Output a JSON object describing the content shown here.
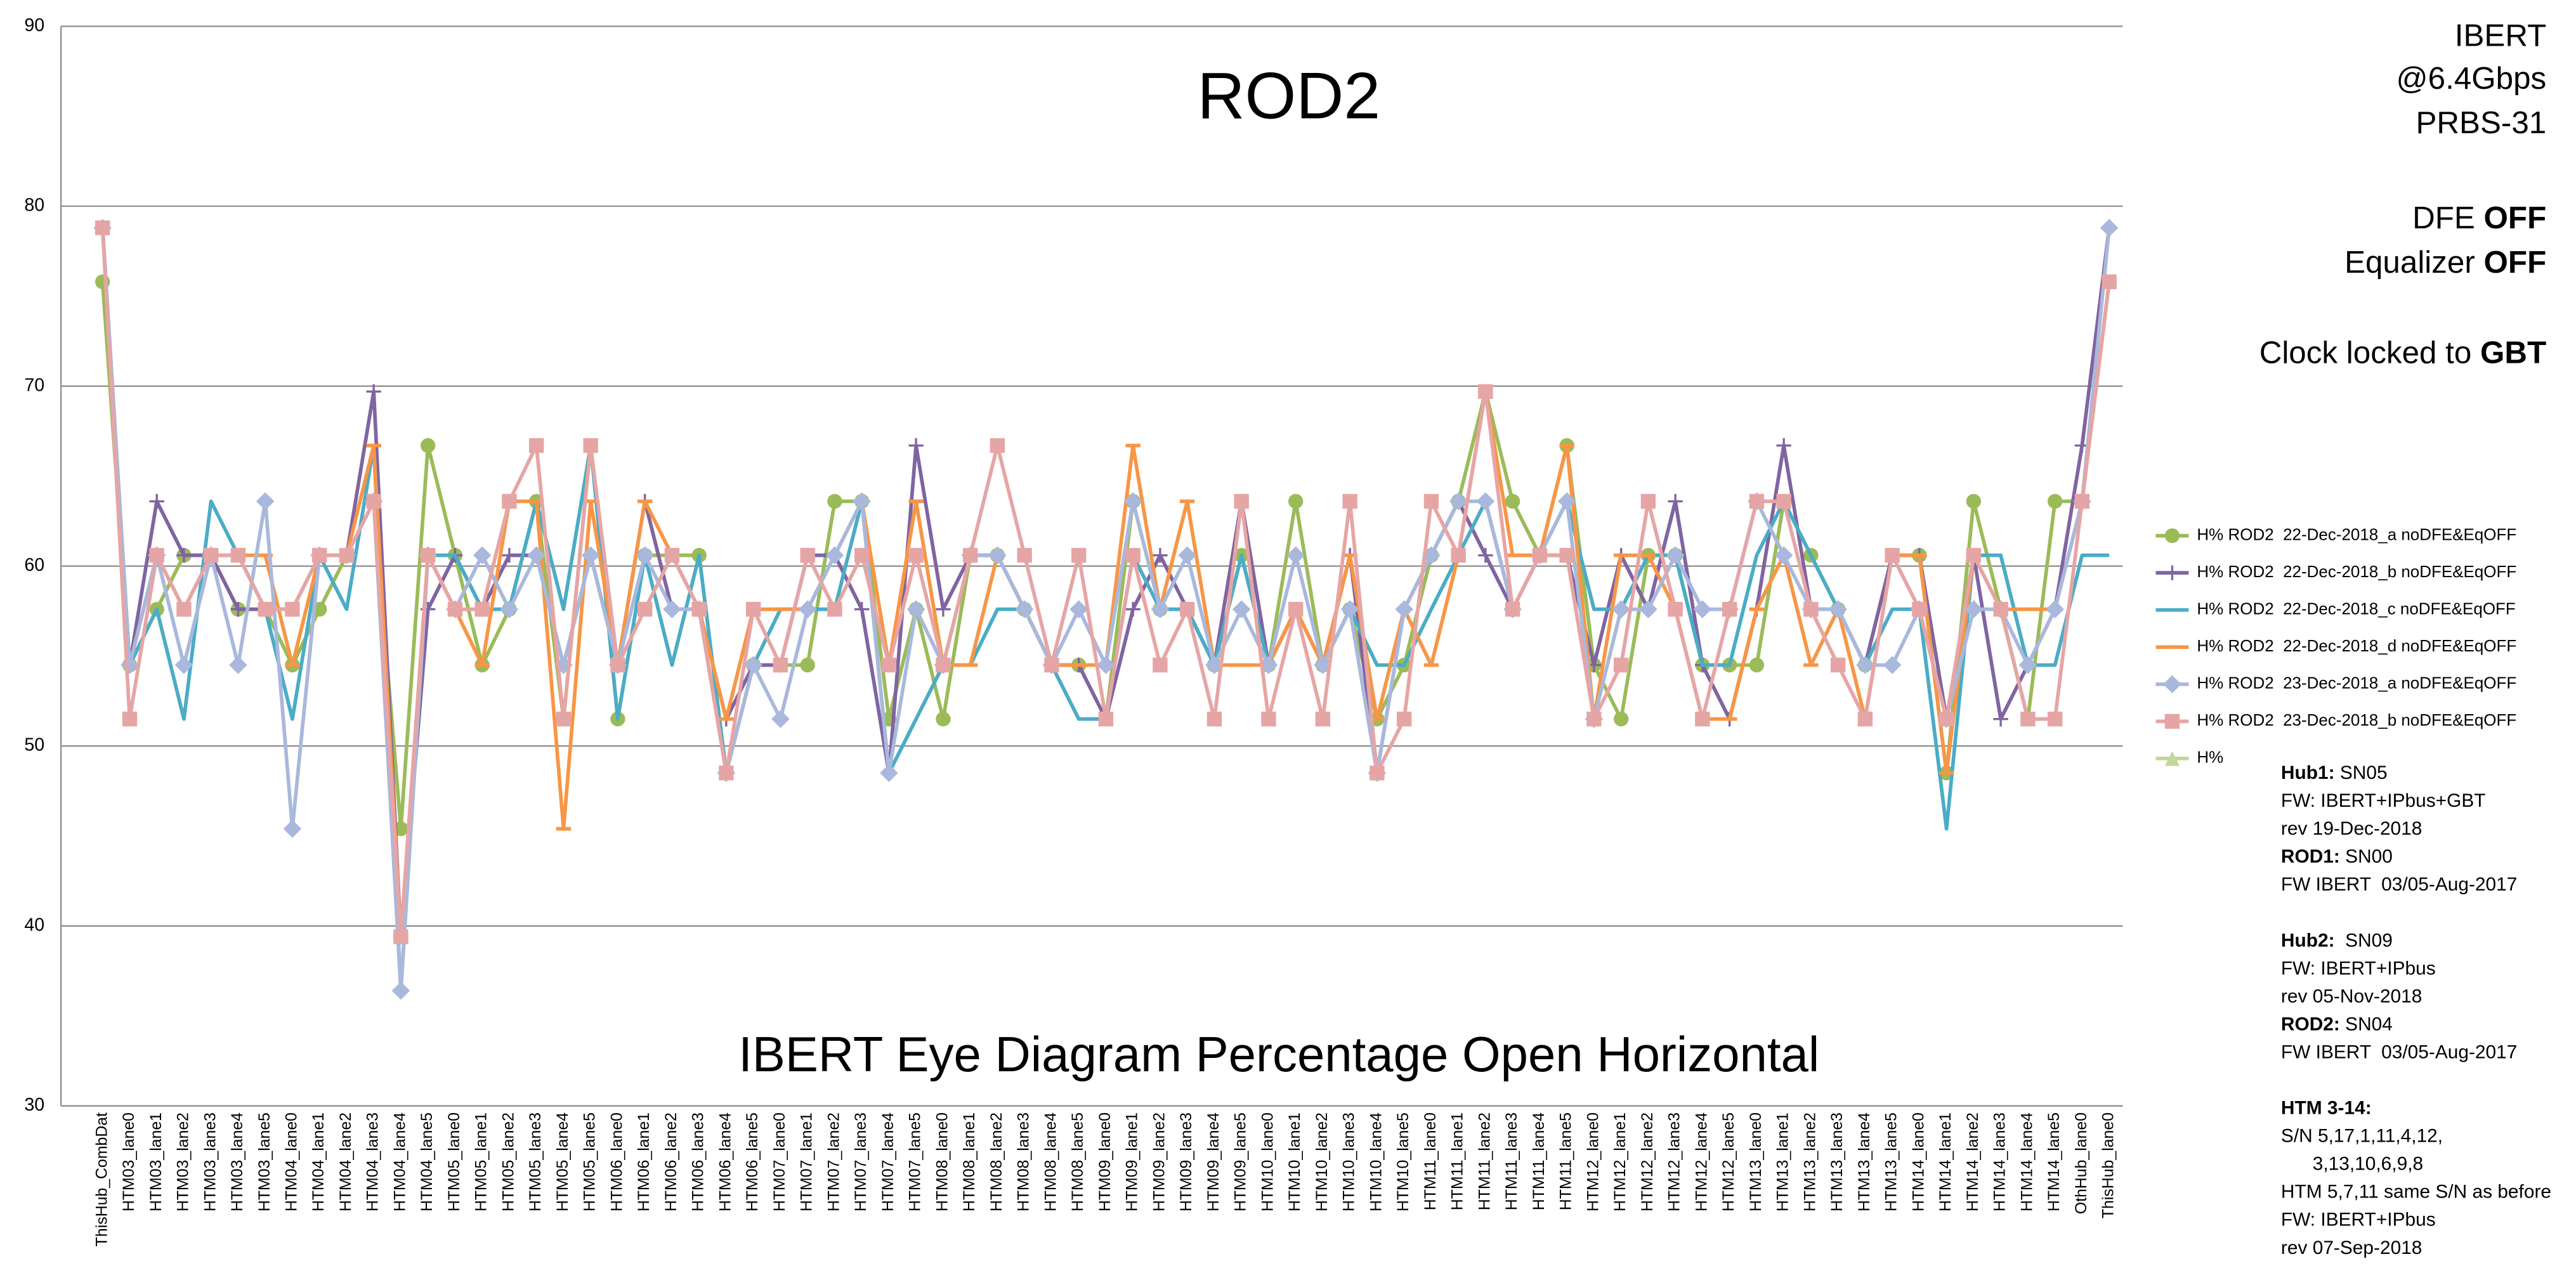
{
  "chart_data": {
    "type": "line",
    "title": "ROD2",
    "subtitle": "IBERT Eye Diagram Percentage Open Horizontal",
    "categories": [
      "ThisHub_CombDat",
      "HTM03_lane0",
      "HTM03_lane1",
      "HTM03_lane2",
      "HTM03_lane3",
      "HTM03_lane4",
      "HTM03_lane5",
      "HTM04_lane0",
      "HTM04_lane1",
      "HTM04_lane2",
      "HTM04_lane3",
      "HTM04_lane4",
      "HTM04_lane5",
      "HTM05_lane0",
      "HTM05_lane1",
      "HTM05_lane2",
      "HTM05_lane3",
      "HTM05_lane4",
      "HTM05_lane5",
      "HTM06_lane0",
      "HTM06_lane1",
      "HTM06_lane2",
      "HTM06_lane3",
      "HTM06_lane4",
      "HTM06_lane5",
      "HTM07_lane0",
      "HTM07_lane1",
      "HTM07_lane2",
      "HTM07_lane3",
      "HTM07_lane4",
      "HTM07_lane5",
      "HTM08_lane0",
      "HTM08_lane1",
      "HTM08_lane2",
      "HTM08_lane3",
      "HTM08_lane4",
      "HTM08_lane5",
      "HTM09_lane0",
      "HTM09_lane1",
      "HTM09_lane2",
      "HTM09_lane3",
      "HTM09_lane4",
      "HTM09_lane5",
      "HTM10_lane0",
      "HTM10_lane1",
      "HTM10_lane2",
      "HTM10_lane3",
      "HTM10_lane4",
      "HTM10_lane5",
      "HTM11_lane0",
      "HTM11_lane1",
      "HTM11_lane2",
      "HTM11_lane3",
      "HTM11_lane4",
      "HTM11_lane5",
      "HTM12_lane0",
      "HTM12_lane1",
      "HTM12_lane2",
      "HTM12_lane3",
      "HTM12_lane4",
      "HTM12_lane5",
      "HTM13_lane0",
      "HTM13_lane1",
      "HTM13_lane2",
      "HTM13_lane3",
      "HTM13_lane4",
      "HTM13_lane5",
      "HTM14_lane0",
      "HTM14_lane1",
      "HTM14_lane2",
      "HTM14_lane3",
      "HTM14_lane4",
      "HTM14_lane5",
      "OthHub_lane0",
      "ThisHub_lane0"
    ],
    "series": [
      {
        "name": "H% ROD2  22-Dec-2018_a noDFE&EqOFF",
        "color": "#9bbb59",
        "marker": "circle",
        "values": [
          75.8,
          54.5,
          57.6,
          60.6,
          60.6,
          57.6,
          57.6,
          54.5,
          57.6,
          60.6,
          63.6,
          45.4,
          66.7,
          60.6,
          54.5,
          57.6,
          63.6,
          51.5,
          66.7,
          51.5,
          60.6,
          60.6,
          60.6,
          48.5,
          54.5,
          54.5,
          54.5,
          63.6,
          63.6,
          51.5,
          57.6,
          51.5,
          60.6,
          60.6,
          57.6,
          54.5,
          54.5,
          51.5,
          63.6,
          57.6,
          57.6,
          54.5,
          60.6,
          54.5,
          63.6,
          54.5,
          57.6,
          51.5,
          54.5,
          60.6,
          63.6,
          69.7,
          63.6,
          60.6,
          66.7,
          54.5,
          51.5,
          60.6,
          60.6,
          54.5,
          54.5,
          54.5,
          63.6,
          60.6,
          57.6,
          54.5,
          60.6,
          60.6,
          48.5,
          63.6,
          57.6,
          51.5,
          63.6,
          63.6,
          75.8
        ]
      },
      {
        "name": "H% ROD2  22-Dec-2018_b noDFE&EqOFF",
        "color": "#8064a2",
        "marker": "plus",
        "values": [
          78.8,
          54.5,
          63.6,
          60.6,
          60.6,
          57.6,
          57.6,
          57.6,
          60.6,
          60.6,
          69.7,
          39.4,
          57.6,
          60.6,
          57.6,
          60.6,
          60.6,
          54.5,
          60.6,
          54.5,
          63.6,
          57.6,
          57.6,
          51.5,
          54.5,
          54.5,
          60.6,
          60.6,
          57.6,
          48.5,
          66.7,
          57.6,
          60.6,
          60.6,
          57.6,
          54.5,
          54.5,
          51.5,
          57.6,
          60.6,
          57.6,
          54.5,
          63.6,
          54.5,
          57.6,
          54.5,
          60.6,
          48.5,
          57.6,
          60.6,
          63.6,
          60.6,
          57.6,
          60.6,
          60.6,
          54.5,
          60.6,
          57.6,
          63.6,
          54.5,
          51.5,
          57.6,
          66.7,
          57.6,
          57.6,
          54.5,
          60.6,
          60.6,
          51.5,
          60.6,
          51.5,
          54.5,
          57.6,
          66.7,
          78.8
        ]
      },
      {
        "name": "H% ROD2  22-Dec-2018_c noDFE&EqOFF",
        "color": "#4bacc6",
        "marker": "none",
        "values": [
          78.8,
          54.5,
          57.6,
          51.5,
          63.6,
          60.6,
          57.6,
          51.5,
          60.6,
          57.6,
          66.7,
          36.4,
          60.6,
          60.6,
          57.6,
          57.6,
          63.6,
          57.6,
          66.7,
          51.5,
          60.6,
          54.5,
          60.6,
          48.5,
          54.5,
          57.6,
          57.6,
          57.6,
          63.6,
          48.5,
          51.5,
          54.5,
          54.5,
          57.6,
          57.6,
          54.5,
          51.5,
          51.5,
          60.6,
          57.6,
          57.6,
          54.5,
          60.6,
          54.5,
          57.6,
          54.5,
          57.6,
          54.5,
          54.5,
          57.6,
          60.6,
          63.6,
          57.6,
          60.6,
          63.6,
          57.6,
          57.6,
          60.6,
          60.6,
          54.5,
          54.5,
          60.6,
          63.6,
          60.6,
          57.6,
          54.5,
          57.6,
          57.6,
          45.4,
          60.6,
          60.6,
          54.5,
          54.5,
          60.6,
          60.6
        ]
      },
      {
        "name": "H% ROD2  22-Dec-2018_d noDFE&EqOFF",
        "color": "#f79646",
        "marker": "dash",
        "values": [
          78.8,
          54.5,
          60.6,
          57.6,
          60.6,
          60.6,
          60.6,
          54.5,
          60.6,
          60.6,
          66.7,
          39.4,
          60.6,
          57.6,
          54.5,
          63.6,
          63.6,
          45.4,
          63.6,
          54.5,
          63.6,
          60.6,
          57.6,
          51.5,
          57.6,
          57.6,
          57.6,
          60.6,
          63.6,
          54.5,
          63.6,
          54.5,
          54.5,
          60.6,
          57.6,
          54.5,
          54.5,
          54.5,
          66.7,
          57.6,
          63.6,
          54.5,
          54.5,
          54.5,
          57.6,
          54.5,
          60.6,
          51.5,
          57.6,
          54.5,
          60.6,
          69.7,
          60.6,
          60.6,
          66.7,
          51.5,
          60.6,
          60.6,
          57.6,
          51.5,
          51.5,
          57.6,
          60.6,
          54.5,
          57.6,
          51.5,
          60.6,
          60.6,
          48.5,
          60.6,
          57.6,
          57.6,
          57.6,
          63.6,
          75.8
        ]
      },
      {
        "name": "H% ROD2  23-Dec-2018_a noDFE&EqOFF",
        "color": "#a9b8dc",
        "marker": "diamond",
        "values": [
          78.8,
          54.5,
          60.6,
          54.5,
          60.6,
          54.5,
          63.6,
          45.4,
          60.6,
          60.6,
          63.6,
          36.4,
          60.6,
          57.6,
          60.6,
          57.6,
          60.6,
          54.5,
          60.6,
          54.5,
          60.6,
          57.6,
          57.6,
          48.5,
          54.5,
          51.5,
          57.6,
          60.6,
          63.6,
          48.5,
          57.6,
          54.5,
          60.6,
          60.6,
          57.6,
          54.5,
          57.6,
          54.5,
          63.6,
          57.6,
          60.6,
          54.5,
          57.6,
          54.5,
          60.6,
          54.5,
          57.6,
          48.5,
          57.6,
          60.6,
          63.6,
          63.6,
          57.6,
          60.6,
          63.6,
          51.5,
          57.6,
          57.6,
          60.6,
          57.6,
          57.6,
          63.6,
          60.6,
          57.6,
          57.6,
          54.5,
          54.5,
          57.6,
          51.5,
          57.6,
          57.6,
          54.5,
          57.6,
          63.6,
          78.8
        ]
      },
      {
        "name": "H% ROD2  23-Dec-2018_b noDFE&EqOFF",
        "color": "#e6a5a5",
        "marker": "square",
        "values": [
          78.8,
          51.5,
          60.6,
          57.6,
          60.6,
          60.6,
          57.6,
          57.6,
          60.6,
          60.6,
          63.6,
          39.4,
          60.6,
          57.6,
          57.6,
          63.6,
          66.7,
          51.5,
          66.7,
          54.5,
          57.6,
          60.6,
          57.6,
          48.5,
          57.6,
          54.5,
          60.6,
          57.6,
          60.6,
          54.5,
          60.6,
          54.5,
          60.6,
          66.7,
          60.6,
          54.5,
          60.6,
          51.5,
          60.6,
          54.5,
          57.6,
          51.5,
          63.6,
          51.5,
          57.6,
          51.5,
          63.6,
          48.5,
          51.5,
          63.6,
          60.6,
          69.7,
          57.6,
          60.6,
          60.6,
          51.5,
          54.5,
          63.6,
          57.6,
          51.5,
          57.6,
          63.6,
          63.6,
          57.6,
          54.5,
          51.5,
          60.6,
          57.6,
          51.5,
          60.6,
          57.6,
          51.5,
          51.5,
          63.6,
          75.8
        ]
      },
      {
        "name": "H%",
        "color": "#c3d69b",
        "marker": "triangle",
        "values": [
          null,
          null,
          null,
          null,
          null,
          null,
          null,
          null,
          null,
          null,
          null,
          null,
          null,
          null,
          null,
          null,
          null,
          null,
          null,
          null,
          null,
          null,
          null,
          null,
          null,
          null,
          null,
          null,
          null,
          null,
          null,
          null,
          null,
          null,
          null,
          null,
          null,
          null,
          null,
          null,
          null,
          null,
          null,
          null,
          null,
          null,
          null,
          null,
          null,
          null,
          null,
          null,
          null,
          null,
          null,
          null,
          null,
          null,
          null,
          null,
          null,
          null,
          null,
          null,
          null,
          null,
          null,
          null,
          null,
          null,
          null,
          null,
          null,
          null,
          null
        ]
      }
    ],
    "ylim": [
      30,
      90
    ],
    "yticks": [
      30,
      40,
      50,
      60,
      70,
      80,
      90
    ],
    "grid": true,
    "legend": "right",
    "annotations": [
      [
        {
          "text": "IBERT"
        }
      ],
      [
        {
          "text": "@6.4Gbps"
        }
      ],
      [
        {
          "text": "PRBS-31"
        }
      ],
      [
        {
          "text": "DFE "
        },
        {
          "text": "OFF",
          "bold": true
        }
      ],
      [
        {
          "text": "Equalizer "
        },
        {
          "text": "OFF",
          "bold": true
        }
      ],
      [
        {
          "text": "Clock locked to "
        },
        {
          "text": "GBT",
          "bold": true
        }
      ]
    ],
    "notes": [
      [
        [
          {
            "text": "Hub1:",
            "bold": true
          },
          {
            "text": " SN05"
          }
        ],
        [
          {
            "text": "FW: IBERT+IPbus+GBT"
          }
        ],
        [
          {
            "text": "rev 19-Dec-2018"
          }
        ],
        [
          {
            "text": "ROD1:",
            "bold": true
          },
          {
            "text": " SN00"
          }
        ],
        [
          {
            "text": "FW IBERT  03/05-Aug-2017"
          }
        ]
      ],
      [
        [
          {
            "text": "Hub2:",
            "bold": true
          },
          {
            "text": "  SN09"
          }
        ],
        [
          {
            "text": "FW: IBERT+IPbus"
          }
        ],
        [
          {
            "text": "rev 05-Nov-2018"
          }
        ],
        [
          {
            "text": "ROD2:",
            "bold": true
          },
          {
            "text": " SN04"
          }
        ],
        [
          {
            "text": "FW IBERT  03/05-Aug-2017"
          }
        ]
      ],
      [
        [
          {
            "text": "HTM 3-14:",
            "bold": true
          }
        ],
        [
          {
            "text": "S/N 5,17,1,11,4,12,"
          }
        ],
        [
          {
            "text": "      3,13,10,6,9,8"
          }
        ],
        [
          {
            "text": "HTM 5,7,11 same S/N as before"
          }
        ],
        [
          {
            "text": "FW: IBERT+IPbus"
          }
        ],
        [
          {
            "text": "rev 07-Sep-2018"
          }
        ]
      ]
    ]
  }
}
